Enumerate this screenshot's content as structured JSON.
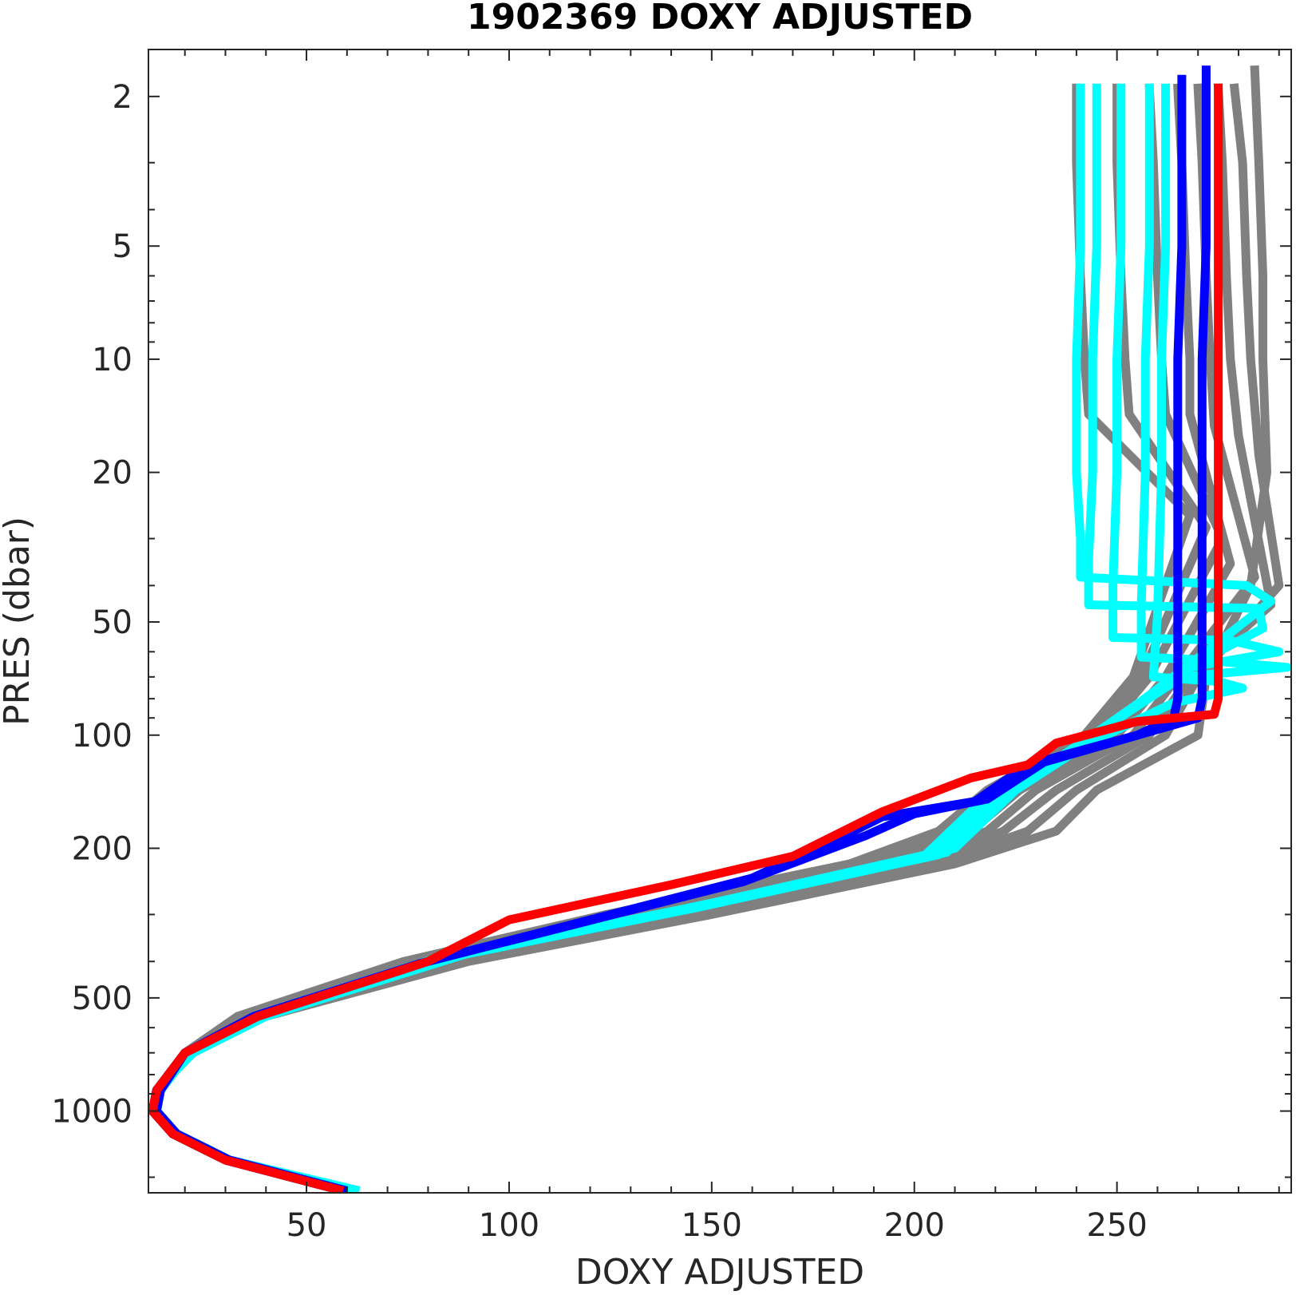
{
  "chart_data": {
    "type": "line",
    "title": "1902369  DOXY ADJUSTED",
    "xlabel": "DOXY ADJUSTED",
    "ylabel": "PRES (dbar)",
    "xlim": [
      11,
      293
    ],
    "ylim": [
      1.5,
      1650
    ],
    "y_scale": "log",
    "y_reversed": true,
    "grid": false,
    "legend": "none",
    "x_ticks": [
      50,
      100,
      150,
      200,
      250
    ],
    "y_ticks": [
      2,
      5,
      10,
      20,
      50,
      100,
      200,
      500,
      1000
    ],
    "x_tick_labels": [
      "50",
      "100",
      "150",
      "200",
      "250"
    ],
    "y_tick_labels": [
      "2",
      "5",
      "10",
      "20",
      "50",
      "100",
      "200",
      "500",
      "1000"
    ],
    "colors": {
      "historical": "#808080",
      "recent": "#00ffff",
      "previous": "#0000ff",
      "latest": "#ff0000",
      "axis": "#262626"
    },
    "series": [
      {
        "group": "historical",
        "x": [
          284,
          285,
          286,
          286,
          287,
          283,
          272,
          270,
          245,
          235,
          210,
          150,
          90,
          40,
          22,
          13,
          12,
          17,
          30,
          58
        ],
        "y": [
          1.7,
          3,
          6,
          10,
          20,
          40,
          70,
          100,
          140,
          180,
          220,
          300,
          400,
          560,
          700,
          880,
          1000,
          1150,
          1350,
          1620
        ]
      },
      {
        "group": "historical",
        "x": [
          279,
          281,
          282,
          283,
          285,
          290,
          270,
          262,
          240,
          228,
          205,
          145,
          85,
          38,
          21,
          14,
          13,
          18,
          31,
          59
        ],
        "y": [
          1.9,
          3,
          6,
          10,
          18,
          40,
          70,
          100,
          140,
          180,
          220,
          300,
          400,
          560,
          700,
          880,
          1000,
          1150,
          1350,
          1620
        ]
      },
      {
        "group": "historical",
        "x": [
          275,
          276,
          277,
          278,
          280,
          288,
          268,
          258,
          235,
          222,
          200,
          140,
          82,
          36,
          20,
          13,
          12,
          17,
          30,
          58
        ],
        "y": [
          1.9,
          3,
          6,
          10,
          16,
          45,
          70,
          100,
          140,
          180,
          220,
          300,
          400,
          560,
          700,
          880,
          1000,
          1150,
          1350,
          1620
        ]
      },
      {
        "group": "historical",
        "x": [
          270,
          271,
          272,
          273,
          274,
          284,
          265,
          254,
          230,
          218,
          196,
          135,
          80,
          35,
          20,
          14,
          13,
          18,
          31,
          59
        ],
        "y": [
          1.9,
          3,
          6,
          10,
          15,
          38,
          70,
          100,
          140,
          180,
          220,
          300,
          400,
          560,
          700,
          880,
          1000,
          1150,
          1350,
          1620
        ]
      },
      {
        "group": "historical",
        "x": [
          265,
          266,
          267,
          268,
          268,
          278,
          262,
          250,
          226,
          214,
          192,
          132,
          78,
          35,
          20,
          13,
          12,
          17,
          30,
          58
        ],
        "y": [
          1.9,
          3,
          6,
          10,
          14,
          35,
          70,
          100,
          140,
          180,
          220,
          300,
          400,
          560,
          700,
          880,
          1000,
          1150,
          1350,
          1620
        ]
      },
      {
        "group": "historical",
        "x": [
          258,
          259,
          260,
          261,
          262,
          276,
          258,
          246,
          222,
          210,
          188,
          128,
          76,
          34,
          20,
          14,
          13,
          18,
          31,
          59
        ],
        "y": [
          1.9,
          3,
          6,
          10,
          14,
          30,
          70,
          100,
          140,
          180,
          220,
          300,
          400,
          560,
          700,
          880,
          1000,
          1150,
          1350,
          1620
        ]
      },
      {
        "group": "historical",
        "x": [
          250,
          250,
          251,
          252,
          253,
          272,
          256,
          244,
          220,
          208,
          186,
          126,
          75,
          34,
          20,
          13,
          12,
          17,
          30,
          58
        ],
        "y": [
          1.9,
          3,
          6,
          10,
          14,
          28,
          70,
          100,
          140,
          180,
          220,
          300,
          400,
          560,
          700,
          880,
          1000,
          1150,
          1350,
          1620
        ]
      },
      {
        "group": "historical",
        "x": [
          240,
          240,
          241,
          242,
          243,
          268,
          254,
          242,
          218,
          206,
          184,
          124,
          74,
          33,
          20,
          14,
          13,
          18,
          31,
          59
        ],
        "y": [
          1.9,
          3,
          6,
          10,
          14,
          26,
          70,
          100,
          140,
          180,
          220,
          300,
          400,
          560,
          700,
          880,
          1000,
          1150,
          1350,
          1620
        ]
      },
      {
        "group": "recent",
        "x": [
          241,
          241,
          240,
          240,
          241,
          241,
          282,
          288,
          272,
          240,
          225,
          210,
          150,
          90,
          40,
          22,
          13,
          13,
          18,
          31,
          62
        ],
        "y": [
          1.9,
          5,
          10,
          20,
          30,
          38,
          40,
          44,
          60,
          110,
          140,
          200,
          280,
          380,
          560,
          700,
          880,
          1000,
          1150,
          1350,
          1620
        ]
      },
      {
        "group": "recent",
        "x": [
          245,
          245,
          244,
          244,
          243,
          243,
          285,
          286,
          270,
          238,
          222,
          208,
          148,
          88,
          39,
          21,
          13,
          13,
          18,
          31,
          61
        ],
        "y": [
          1.9,
          5,
          10,
          20,
          34,
          45,
          46,
          52,
          64,
          112,
          145,
          205,
          285,
          385,
          560,
          700,
          880,
          1000,
          1150,
          1350,
          1620
        ]
      },
      {
        "group": "recent",
        "x": [
          251,
          251,
          250,
          250,
          249,
          249,
          278,
          290,
          268,
          236,
          220,
          206,
          146,
          86,
          38,
          21,
          14,
          13,
          18,
          31,
          61
        ],
        "y": [
          1.9,
          5,
          10,
          20,
          40,
          55,
          56,
          60,
          66,
          115,
          148,
          208,
          288,
          388,
          560,
          700,
          880,
          1000,
          1150,
          1350,
          1620
        ]
      },
      {
        "group": "recent",
        "x": [
          258,
          258,
          257,
          257,
          256,
          256,
          270,
          292,
          266,
          234,
          218,
          204,
          144,
          84,
          38,
          21,
          13,
          13,
          18,
          31,
          60
        ],
        "y": [
          1.9,
          5,
          10,
          20,
          45,
          62,
          63,
          66,
          70,
          118,
          150,
          210,
          290,
          390,
          560,
          700,
          880,
          1000,
          1150,
          1350,
          1620
        ]
      },
      {
        "group": "recent",
        "x": [
          262,
          262,
          261,
          261,
          260,
          259,
          275,
          281,
          264,
          232,
          216,
          202,
          142,
          82,
          37,
          21,
          14,
          13,
          18,
          31,
          60
        ],
        "y": [
          1.9,
          5,
          10,
          20,
          48,
          70,
          72,
          75,
          82,
          120,
          152,
          212,
          292,
          392,
          560,
          700,
          880,
          1000,
          1150,
          1350,
          1620
        ]
      },
      {
        "group": "previous",
        "x": [
          266,
          266,
          265,
          265,
          265,
          265,
          264,
          255,
          228,
          215,
          192,
          185,
          160,
          120,
          80,
          38,
          20,
          13,
          12,
          17,
          30,
          58
        ],
        "y": [
          1.8,
          5,
          10,
          20,
          50,
          80,
          90,
          100,
          120,
          150,
          165,
          180,
          240,
          310,
          400,
          560,
          700,
          880,
          1000,
          1150,
          1350,
          1620
        ]
      },
      {
        "group": "previous",
        "x": [
          272,
          272,
          271,
          271,
          271,
          271,
          270,
          258,
          232,
          218,
          200,
          188,
          158,
          118,
          78,
          37,
          20,
          14,
          13,
          18,
          31,
          59
        ],
        "y": [
          1.7,
          5,
          10,
          20,
          50,
          80,
          90,
          98,
          118,
          148,
          162,
          185,
          245,
          315,
          405,
          560,
          700,
          880,
          1000,
          1150,
          1350,
          1620
        ]
      },
      {
        "group": "latest",
        "x": [
          275,
          275,
          275,
          275,
          275,
          275,
          274,
          255,
          235,
          228,
          214,
          192,
          170,
          140,
          100,
          80,
          38,
          20,
          13,
          12,
          17,
          30,
          58
        ],
        "y": [
          1.9,
          5,
          10,
          20,
          50,
          80,
          88,
          92,
          105,
          120,
          130,
          160,
          210,
          250,
          310,
          400,
          560,
          700,
          880,
          1000,
          1150,
          1350,
          1620
        ]
      }
    ]
  }
}
